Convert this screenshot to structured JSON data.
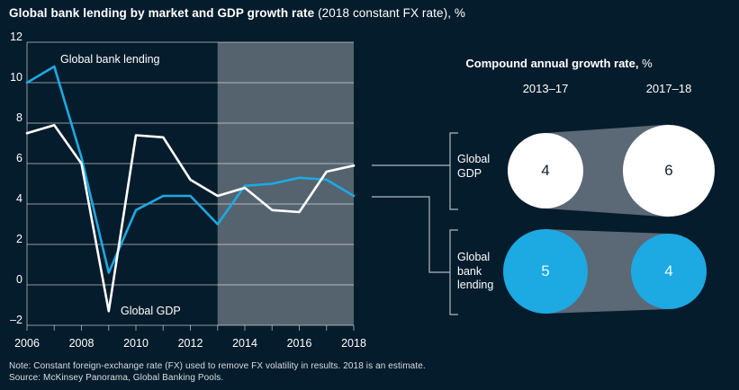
{
  "title": {
    "bold": "Global bank lending by market and GDP growth rate",
    "regular": " (2018 constant FX rate), %"
  },
  "chart_data": {
    "type": "line",
    "x": [
      2006,
      2007,
      2008,
      2009,
      2010,
      2011,
      2012,
      2013,
      2014,
      2015,
      2016,
      2017,
      2018
    ],
    "series": [
      {
        "name": "Global bank lending",
        "color": "#1da9e2",
        "values": [
          10.0,
          10.8,
          6.3,
          0.6,
          3.7,
          4.4,
          4.4,
          3.0,
          4.9,
          5.0,
          5.3,
          5.2,
          4.4
        ]
      },
      {
        "name": "Global GDP",
        "color": "#ffffff",
        "values": [
          7.5,
          7.9,
          6.0,
          -1.3,
          7.4,
          7.3,
          5.2,
          4.4,
          4.8,
          3.7,
          3.6,
          5.6,
          5.9
        ]
      }
    ],
    "ylim": [
      -2,
      12
    ],
    "ytick_labels": [
      "12",
      "10",
      "8",
      "6",
      "4",
      "2",
      "0",
      "–2"
    ],
    "xtick_labels": [
      "2006",
      "2008",
      "2010",
      "2012",
      "2014",
      "2016",
      "2018"
    ],
    "highlight_band": {
      "from": 2013,
      "to": 2018
    },
    "grid": true,
    "legend_position": "inline-labels"
  },
  "panel": {
    "title_bold": "Compound annual growth rate,",
    "title_regular": " %",
    "columns": [
      "2013–17",
      "2017–18"
    ],
    "rows": [
      {
        "label": "Global GDP",
        "fill": "#ffffff",
        "text_color": "#10202e",
        "values": [
          4,
          6
        ]
      },
      {
        "label": "Global bank lending",
        "fill": "#1da9e2",
        "text_color": "#eef8fd",
        "values": [
          5,
          4
        ]
      }
    ]
  },
  "footer": {
    "note": "Note: Constant foreign-exchange rate (FX) used to remove FX volatility in results. 2018 is an estimate.",
    "source": "Source: McKinsey Panorama, Global Banking Pools."
  },
  "colors": {
    "background": "#051c2c",
    "band": "#55636f",
    "funnel": "#5b6875",
    "grid": "rgba(255,255,255,0.55)",
    "connector": "#b0b8be",
    "text": "#ffffff",
    "footer_text": "#d9dee2"
  }
}
